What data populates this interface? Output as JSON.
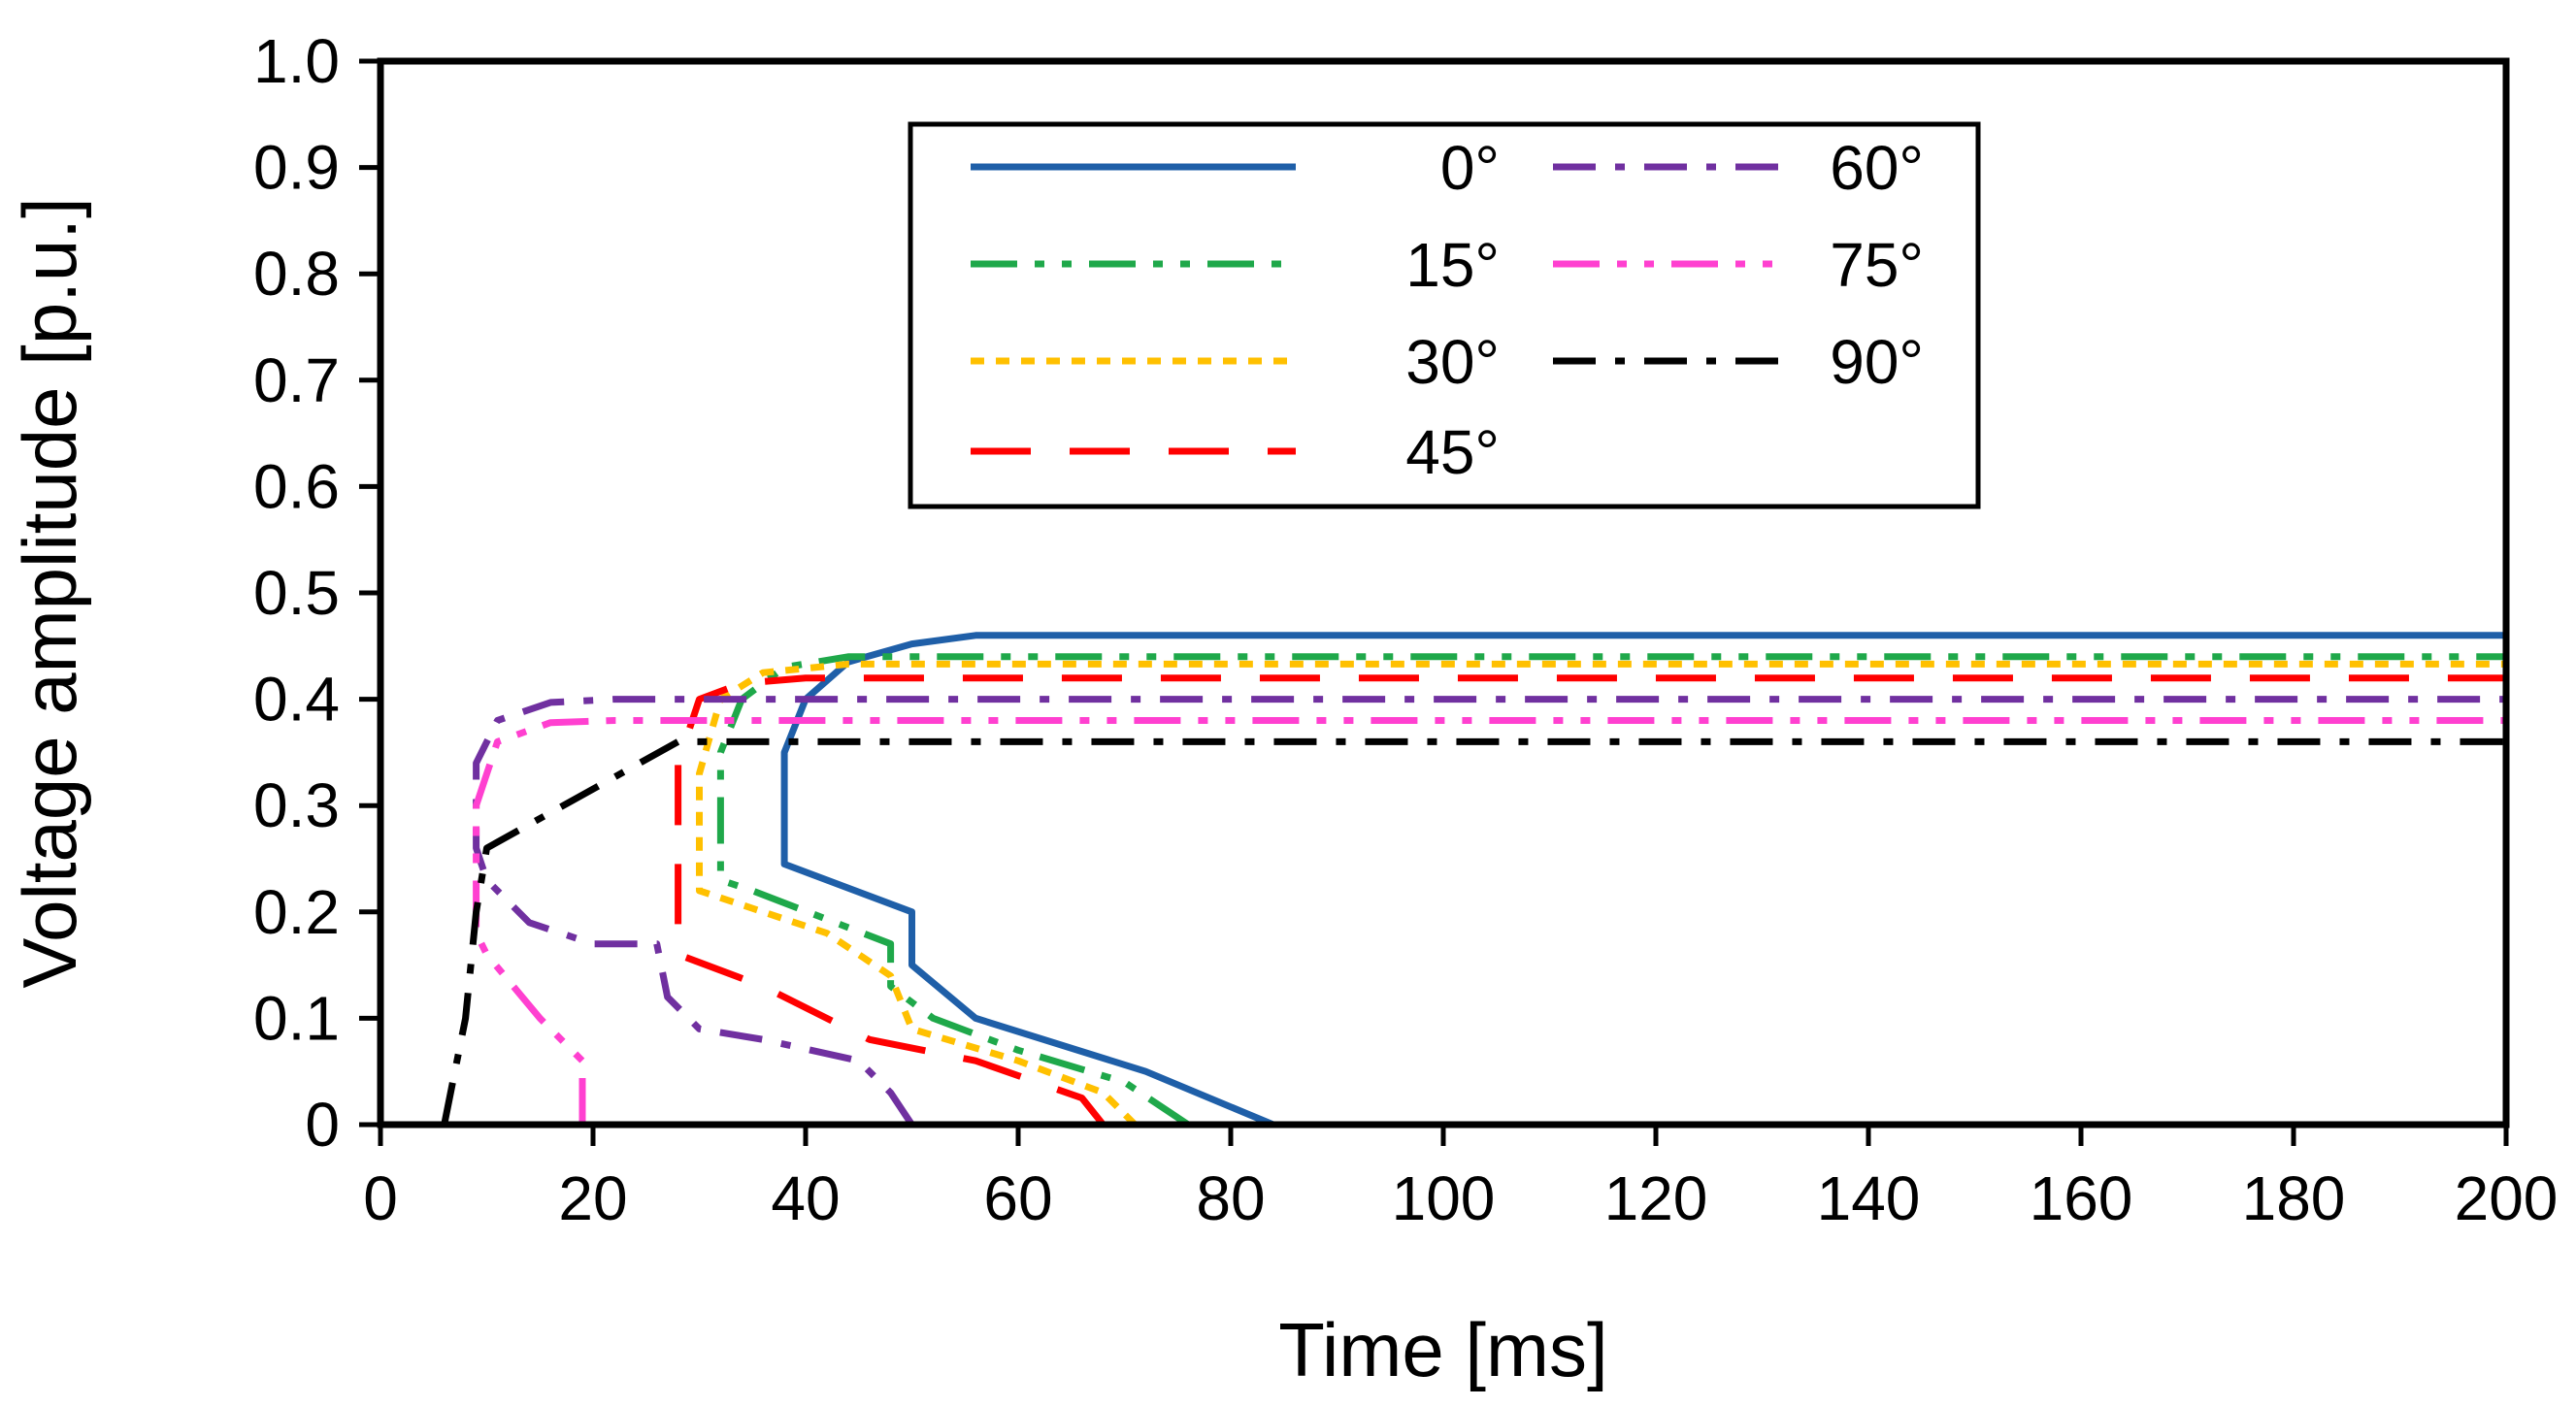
{
  "chart_data": {
    "type": "line",
    "title": "",
    "xlabel": "Time [ms]",
    "ylabel": "Voltage amplitude [p.u.]",
    "xlim": [
      0,
      200
    ],
    "ylim": [
      0,
      1.0
    ],
    "xticks": [
      0,
      20,
      40,
      60,
      80,
      100,
      120,
      140,
      160,
      180,
      200
    ],
    "yticks": [
      0,
      0.1,
      0.2,
      0.3,
      0.4,
      0.5,
      0.6,
      0.7,
      0.8,
      0.9,
      1.0
    ],
    "xtick_labels": [
      "0",
      "20",
      "40",
      "60",
      "80",
      "100",
      "120",
      "140",
      "160",
      "180",
      "200"
    ],
    "ytick_labels": [
      "0",
      "0.1",
      "0.2",
      "0.3",
      "0.4",
      "0.5",
      "0.6",
      "0.7",
      "0.8",
      "0.9",
      "1.0"
    ],
    "grid": false,
    "legend_position": "top-center",
    "series": [
      {
        "name": "0°",
        "color": "#1f5fa8",
        "dash": "solid",
        "points": [
          [
            84,
            0
          ],
          [
            72,
            0.05
          ],
          [
            56,
            0.1
          ],
          [
            50,
            0.15
          ],
          [
            50,
            0.2
          ],
          [
            38,
            0.245
          ],
          [
            38,
            0.35
          ],
          [
            40,
            0.4
          ],
          [
            44,
            0.435
          ],
          [
            50,
            0.452
          ],
          [
            56,
            0.46
          ],
          [
            200,
            0.46
          ]
        ]
      },
      {
        "name": "15°",
        "color": "#1fa84a",
        "dash": "dashdotdot",
        "points": [
          [
            76,
            0
          ],
          [
            70,
            0.04
          ],
          [
            60,
            0.07
          ],
          [
            52,
            0.1
          ],
          [
            48,
            0.13
          ],
          [
            48,
            0.17
          ],
          [
            35,
            0.22
          ],
          [
            32,
            0.23
          ],
          [
            32,
            0.35
          ],
          [
            34,
            0.4
          ],
          [
            38,
            0.43
          ],
          [
            44,
            0.44
          ],
          [
            200,
            0.44
          ]
        ]
      },
      {
        "name": "30°",
        "color": "#ffc000",
        "dash": "dot",
        "points": [
          [
            71,
            0
          ],
          [
            68,
            0.03
          ],
          [
            60,
            0.06
          ],
          [
            50,
            0.09
          ],
          [
            48,
            0.14
          ],
          [
            42,
            0.18
          ],
          [
            36,
            0.2
          ],
          [
            30,
            0.22
          ],
          [
            30,
            0.33
          ],
          [
            32,
            0.4
          ],
          [
            36,
            0.425
          ],
          [
            44,
            0.433
          ],
          [
            200,
            0.433
          ]
        ]
      },
      {
        "name": "45°",
        "color": "#ff0000",
        "dash": "dash",
        "points": [
          [
            68,
            0
          ],
          [
            66,
            0.025
          ],
          [
            56,
            0.06
          ],
          [
            46,
            0.08
          ],
          [
            36,
            0.13
          ],
          [
            28,
            0.16
          ],
          [
            28,
            0.34
          ],
          [
            30,
            0.4
          ],
          [
            34,
            0.415
          ],
          [
            40,
            0.42
          ],
          [
            200,
            0.42
          ]
        ]
      },
      {
        "name": "60°",
        "color": "#7030a0",
        "dash": "dashdot",
        "points": [
          [
            50,
            0
          ],
          [
            48,
            0.03
          ],
          [
            45,
            0.06
          ],
          [
            36,
            0.08
          ],
          [
            30,
            0.09
          ],
          [
            27,
            0.12
          ],
          [
            26,
            0.17
          ],
          [
            20,
            0.17
          ],
          [
            14,
            0.19
          ],
          [
            10,
            0.23
          ],
          [
            9,
            0.26
          ],
          [
            9,
            0.34
          ],
          [
            11,
            0.38
          ],
          [
            16,
            0.397
          ],
          [
            22,
            0.4
          ],
          [
            200,
            0.4
          ]
        ]
      },
      {
        "name": "75°",
        "color": "#ff40d0",
        "dash": "dashdotdot",
        "points": [
          [
            19,
            0
          ],
          [
            19,
            0.06
          ],
          [
            15,
            0.1
          ],
          [
            10,
            0.16
          ],
          [
            9,
            0.18
          ],
          [
            9,
            0.3
          ],
          [
            11,
            0.36
          ],
          [
            16,
            0.378
          ],
          [
            22,
            0.38
          ],
          [
            200,
            0.38
          ]
        ]
      },
      {
        "name": "90°",
        "color": "#000000",
        "dash": "dashdot",
        "points": [
          [
            6,
            0
          ],
          [
            8,
            0.1
          ],
          [
            9,
            0.2
          ],
          [
            10,
            0.26
          ],
          [
            28,
            0.36
          ],
          [
            200,
            0.36
          ]
        ]
      }
    ]
  }
}
